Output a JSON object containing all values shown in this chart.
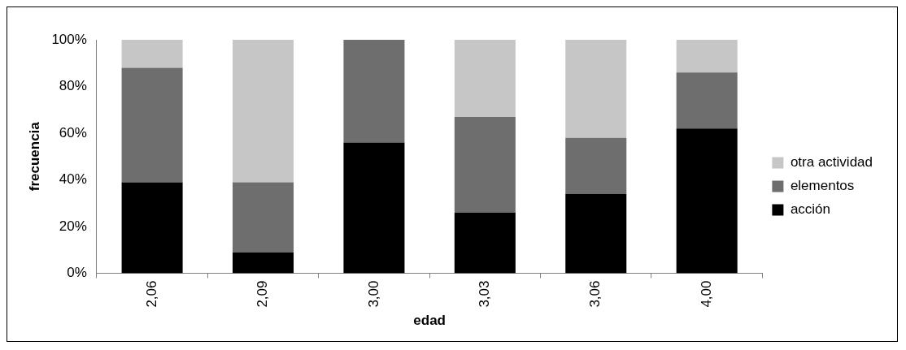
{
  "chart_data": {
    "type": "bar",
    "stacked": true,
    "xlabel": "edad",
    "ylabel": "frecuencia",
    "categories": [
      "2,06",
      "2,09",
      "3,00",
      "3,03",
      "3,06",
      "4,00"
    ],
    "series": [
      {
        "name": "acción",
        "color": "#000000",
        "values": [
          39,
          9,
          56,
          26,
          34,
          62
        ]
      },
      {
        "name": "elementos",
        "color": "#6e6e6e",
        "values": [
          49,
          30,
          44,
          41,
          24,
          24
        ]
      },
      {
        "name": "otra actividad",
        "color": "#c6c6c6",
        "values": [
          12,
          61,
          0,
          33,
          42,
          14
        ]
      }
    ],
    "ylim": [
      0,
      100
    ],
    "yticks": [
      {
        "value": 0,
        "label": "0%"
      },
      {
        "value": 20,
        "label": "20%"
      },
      {
        "value": 40,
        "label": "40%"
      },
      {
        "value": 60,
        "label": "60%"
      },
      {
        "value": 80,
        "label": "80%"
      },
      {
        "value": 100,
        "label": "100%"
      }
    ],
    "grid": false,
    "legend": "right"
  }
}
